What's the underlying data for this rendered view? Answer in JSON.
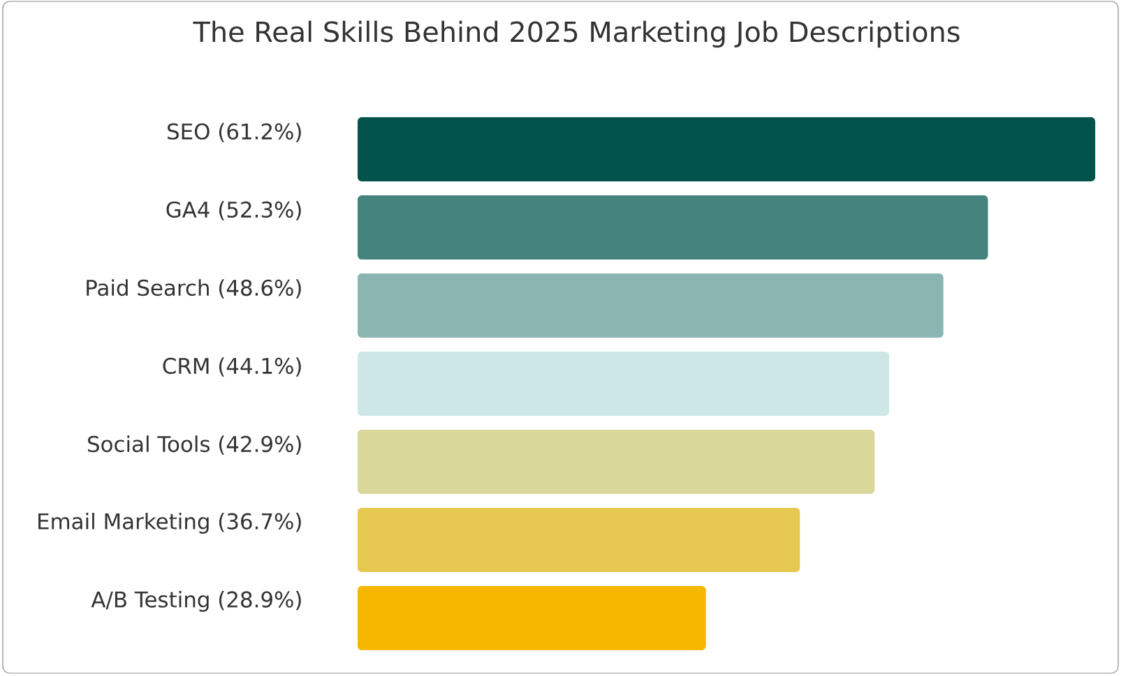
{
  "chart_data": {
    "type": "bar",
    "orientation": "horizontal",
    "title": "The Real Skills Behind 2025 Marketing Job Descriptions",
    "categories": [
      "SEO",
      "GA4",
      "Paid Search",
      "CRM",
      "Social Tools",
      "Email Marketing",
      "A/B Testing"
    ],
    "values": [
      61.2,
      52.3,
      48.6,
      44.1,
      42.9,
      36.7,
      28.9
    ],
    "value_labels": [
      "(61.2%)",
      "(52.3%)",
      "(48.6%)",
      "(44.1%)",
      "(42.9%)",
      "(36.7%)",
      "(28.9%)"
    ],
    "colors": [
      "#00524a",
      "#45847d",
      "#8ab5b1",
      "#cde6e6",
      "#dad79b",
      "#e6c74f",
      "#f5b700"
    ]
  }
}
